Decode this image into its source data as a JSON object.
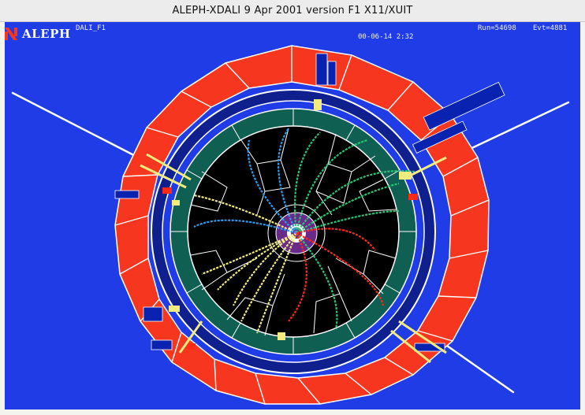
{
  "window": {
    "title": "ALEPH-XDALI  9 Apr 2001  version F1   X11/XUIT"
  },
  "header": {
    "logo_text": "ALEPH",
    "program": "DALI_F1",
    "datetime": "00-06-14  2:32",
    "run": "Run=54698",
    "event": "Evt=4881"
  },
  "colors": {
    "background": "#1f3ce6",
    "calorimeter": "#f6361e",
    "inner_ring": "#0f1f8e",
    "ecal": "#0f5f52",
    "tracker": "#000000",
    "vertex": "#6a2a8a",
    "track_yellow": "#f2ec7e",
    "track_green": "#26c678",
    "track_cyan": "#2a9cf0",
    "track_red": "#ff2a16"
  },
  "icons": {
    "logo": "aleph-logo-icon"
  }
}
